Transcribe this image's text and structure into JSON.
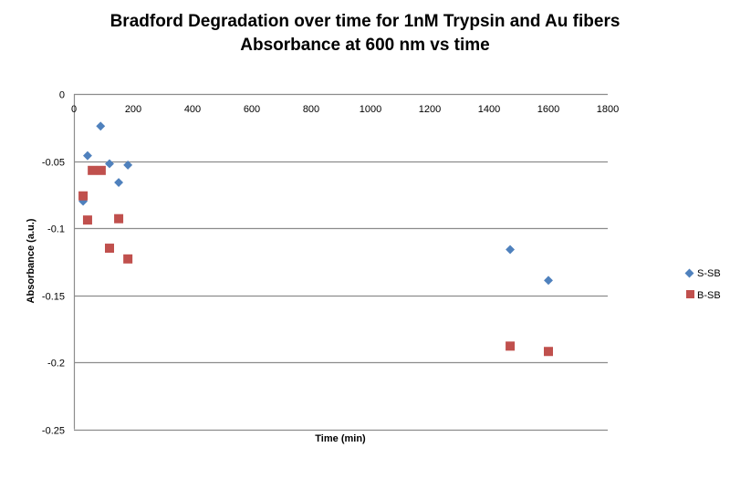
{
  "chart_data": {
    "type": "scatter",
    "title": "Bradford Degradation over time for 1nM Trypsin and Au fibers",
    "subtitle": "Absorbance at 600 nm vs time",
    "xlabel": "Time (min)",
    "ylabel": "Absorbance (a.u.)",
    "xlim": [
      0,
      1800
    ],
    "ylim": [
      -0.25,
      0
    ],
    "x_ticks": [
      0,
      200,
      400,
      600,
      800,
      1000,
      1200,
      1400,
      1600,
      1800
    ],
    "y_ticks": [
      0,
      -0.05,
      -0.1,
      -0.15,
      -0.2,
      -0.25
    ],
    "y_tick_labels": [
      "0",
      "-0.05",
      "-0.1",
      "-0.15",
      "-0.2",
      "-0.25"
    ],
    "grid": "horizontal",
    "legend_position": "right",
    "series": [
      {
        "name": "S-SB",
        "marker": "diamond",
        "color": "#4F81BD",
        "points": [
          {
            "x": 31,
            "y": -0.08
          },
          {
            "x": 46,
            "y": -0.046
          },
          {
            "x": 90,
            "y": -0.024
          },
          {
            "x": 120,
            "y": -0.052
          },
          {
            "x": 151,
            "y": -0.066
          },
          {
            "x": 182,
            "y": -0.053
          },
          {
            "x": 1471,
            "y": -0.116
          },
          {
            "x": 1600,
            "y": -0.139
          }
        ]
      },
      {
        "name": "B-SB",
        "marker": "square",
        "color": "#C0504D",
        "points": [
          {
            "x": 31,
            "y": -0.076
          },
          {
            "x": 46,
            "y": -0.094
          },
          {
            "x": 62,
            "y": -0.057
          },
          {
            "x": 92,
            "y": -0.057
          },
          {
            "x": 120,
            "y": -0.115
          },
          {
            "x": 151,
            "y": -0.093
          },
          {
            "x": 182,
            "y": -0.123
          },
          {
            "x": 1471,
            "y": -0.188
          },
          {
            "x": 1600,
            "y": -0.192
          }
        ]
      }
    ]
  },
  "legend": {
    "items": [
      {
        "label": "S-SB",
        "color": "#4F81BD"
      },
      {
        "label": "B-SB",
        "color": "#C0504D"
      }
    ]
  }
}
